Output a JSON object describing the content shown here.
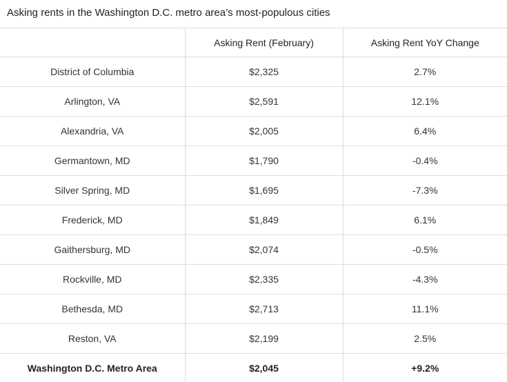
{
  "chart_data": {
    "type": "table",
    "title": "Asking rents in the Washington D.C. metro area’s most-populous cities",
    "columns": [
      "",
      "Asking Rent (February)",
      "Asking Rent YoY Change"
    ],
    "rows": [
      {
        "city": "District of Columbia",
        "rent": "$2,325",
        "yoy": "2.7%"
      },
      {
        "city": "Arlington, VA",
        "rent": "$2,591",
        "yoy": "12.1%"
      },
      {
        "city": "Alexandria, VA",
        "rent": "$2,005",
        "yoy": "6.4%"
      },
      {
        "city": "Germantown, MD",
        "rent": "$1,790",
        "yoy": "-0.4%"
      },
      {
        "city": "Silver Spring, MD",
        "rent": "$1,695",
        "yoy": "-7.3%"
      },
      {
        "city": "Frederick, MD",
        "rent": "$1,849",
        "yoy": "6.1%"
      },
      {
        "city": "Gaithersburg, MD",
        "rent": "$2,074",
        "yoy": "-0.5%"
      },
      {
        "city": "Rockville, MD",
        "rent": "$2,335",
        "yoy": "-4.3%"
      },
      {
        "city": "Bethesda, MD",
        "rent": "$2,713",
        "yoy": "11.1%"
      },
      {
        "city": "Reston, VA",
        "rent": "$2,199",
        "yoy": "2.5%"
      }
    ],
    "total": {
      "city": "Washington D.C. Metro Area",
      "rent": "$2,045",
      "yoy": "+9.2%"
    }
  }
}
